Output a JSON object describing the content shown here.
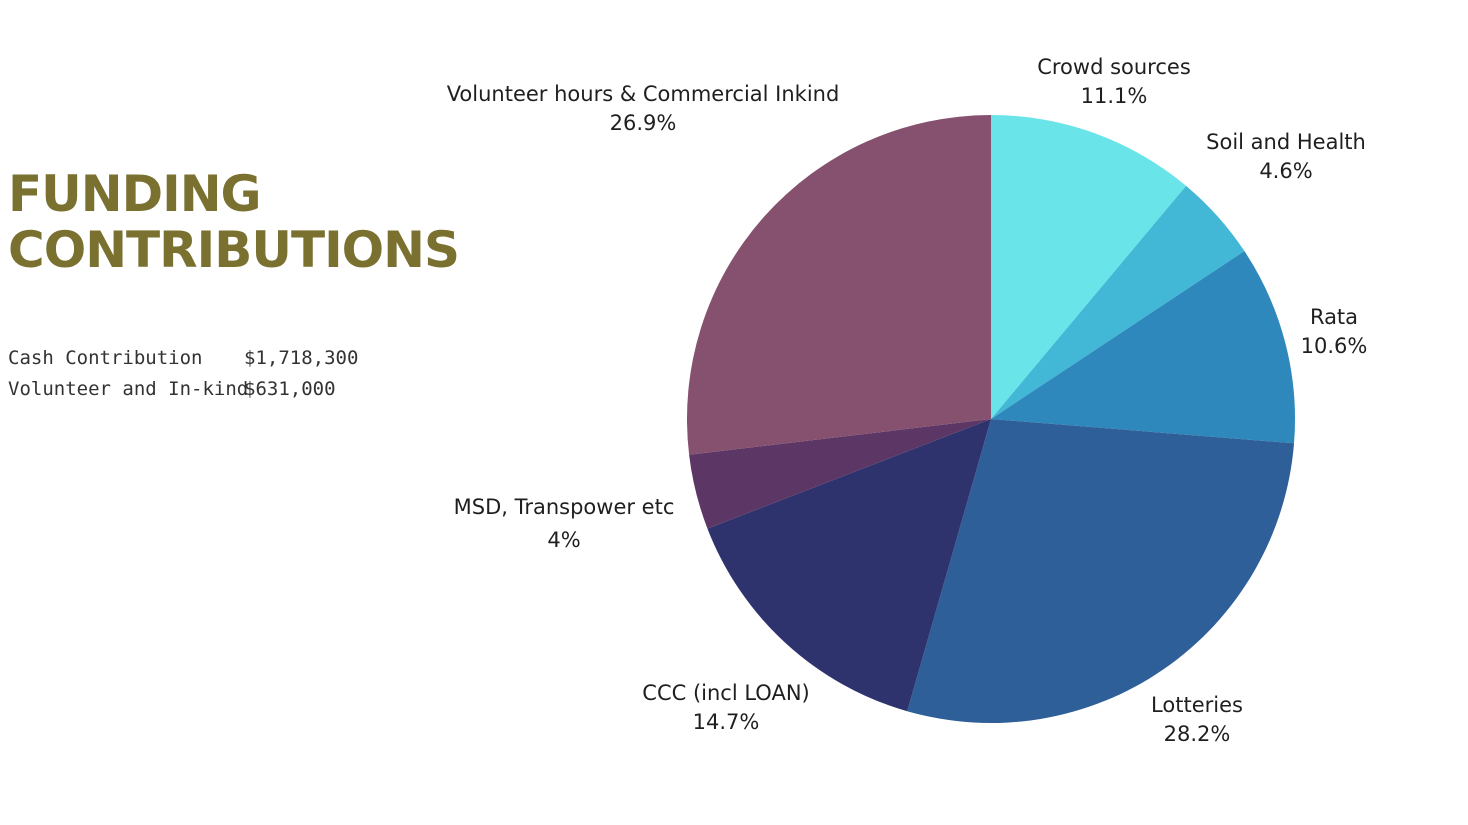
{
  "page": {
    "title_lines": [
      "FUNDING",
      "CONTRIBUTIONS"
    ],
    "accent_color": "#7a7130"
  },
  "summary": [
    {
      "label": "Cash Contribution",
      "value": "$1,718,300"
    },
    {
      "label": "Volunteer and In-kind",
      "value": "$631,000"
    }
  ],
  "chart_data": {
    "type": "pie",
    "start": "12 o'clock",
    "direction": "clockwise",
    "slices": [
      {
        "name": "Crowd sources",
        "value": 11.1,
        "label": "11.1%",
        "color": "#69e4e9"
      },
      {
        "name": "Soil and Health",
        "value": 4.6,
        "label": "4.6%",
        "color": "#43b7d6"
      },
      {
        "name": "Rata",
        "value": 10.6,
        "label": "10.6%",
        "color": "#2e88bc"
      },
      {
        "name": "Lotteries",
        "value": 28.2,
        "label": "28.2%",
        "color": "#2e5f99"
      },
      {
        "name": "CCC (incl LOAN)",
        "value": 14.7,
        "label": "14.7%",
        "color": "#2f336d"
      },
      {
        "name": "MSD, Transpower etc",
        "value": 4,
        "label": "4%",
        "color": "#5c3765"
      },
      {
        "name": "Volunteer hours & Commercial Inkind",
        "value": 26.9,
        "label": "26.9%",
        "color": "#86506f"
      }
    ]
  }
}
